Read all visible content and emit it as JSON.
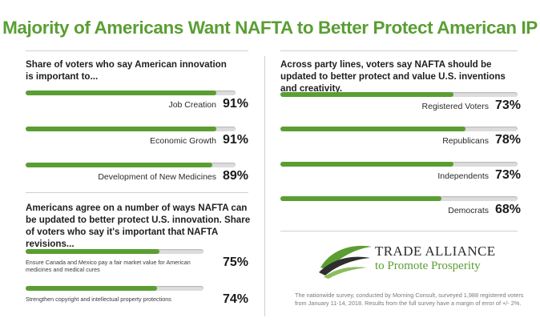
{
  "title": "Majority of Americans Want NAFTA to Better Protect American IP",
  "colors": {
    "accent": "#5a9e33",
    "track": "#dcdcdc"
  },
  "chart_data": [
    {
      "type": "bar",
      "title": "Share of voters who say American innovation is important to...",
      "categories": [
        "Job Creation",
        "Economic Growth",
        "Development of New Medicines"
      ],
      "values": [
        91,
        91,
        89
      ],
      "value_labels": [
        "91%",
        "91%",
        "89%"
      ],
      "ylim": [
        0,
        100
      ]
    },
    {
      "type": "bar",
      "title": "Americans agree on a number of ways NAFTA can be updated to better protect U.S. innovation. Share of voters who say it's important that NAFTA revisions...",
      "categories": [
        "Ensure Canada and Mexico pay a fair market value for American medicines and medical cures",
        "Strengthen copyright and intellectual property protections"
      ],
      "values": [
        75,
        74
      ],
      "value_labels": [
        "75%",
        "74%"
      ],
      "ylim": [
        0,
        100
      ]
    },
    {
      "type": "bar",
      "title": "Across party lines, voters say NAFTA should be updated to better protect and value U.S. inventions and creativity.",
      "categories": [
        "Registered Voters",
        "Republicans",
        "Independents",
        "Democrats"
      ],
      "values": [
        73,
        78,
        73,
        68
      ],
      "value_labels": [
        "73%",
        "78%",
        "73%",
        "68%"
      ],
      "ylim": [
        0,
        100
      ]
    }
  ],
  "logo": {
    "name": "TRADE ALLIANCE",
    "tagline": "to Promote Prosperity"
  },
  "footnote": "The nationwide survey, conducted by Morning Consult, surveyed 1,988 registered voters from January 11-14, 2018. Results from the full survey have a margin of error of +/- 2%."
}
